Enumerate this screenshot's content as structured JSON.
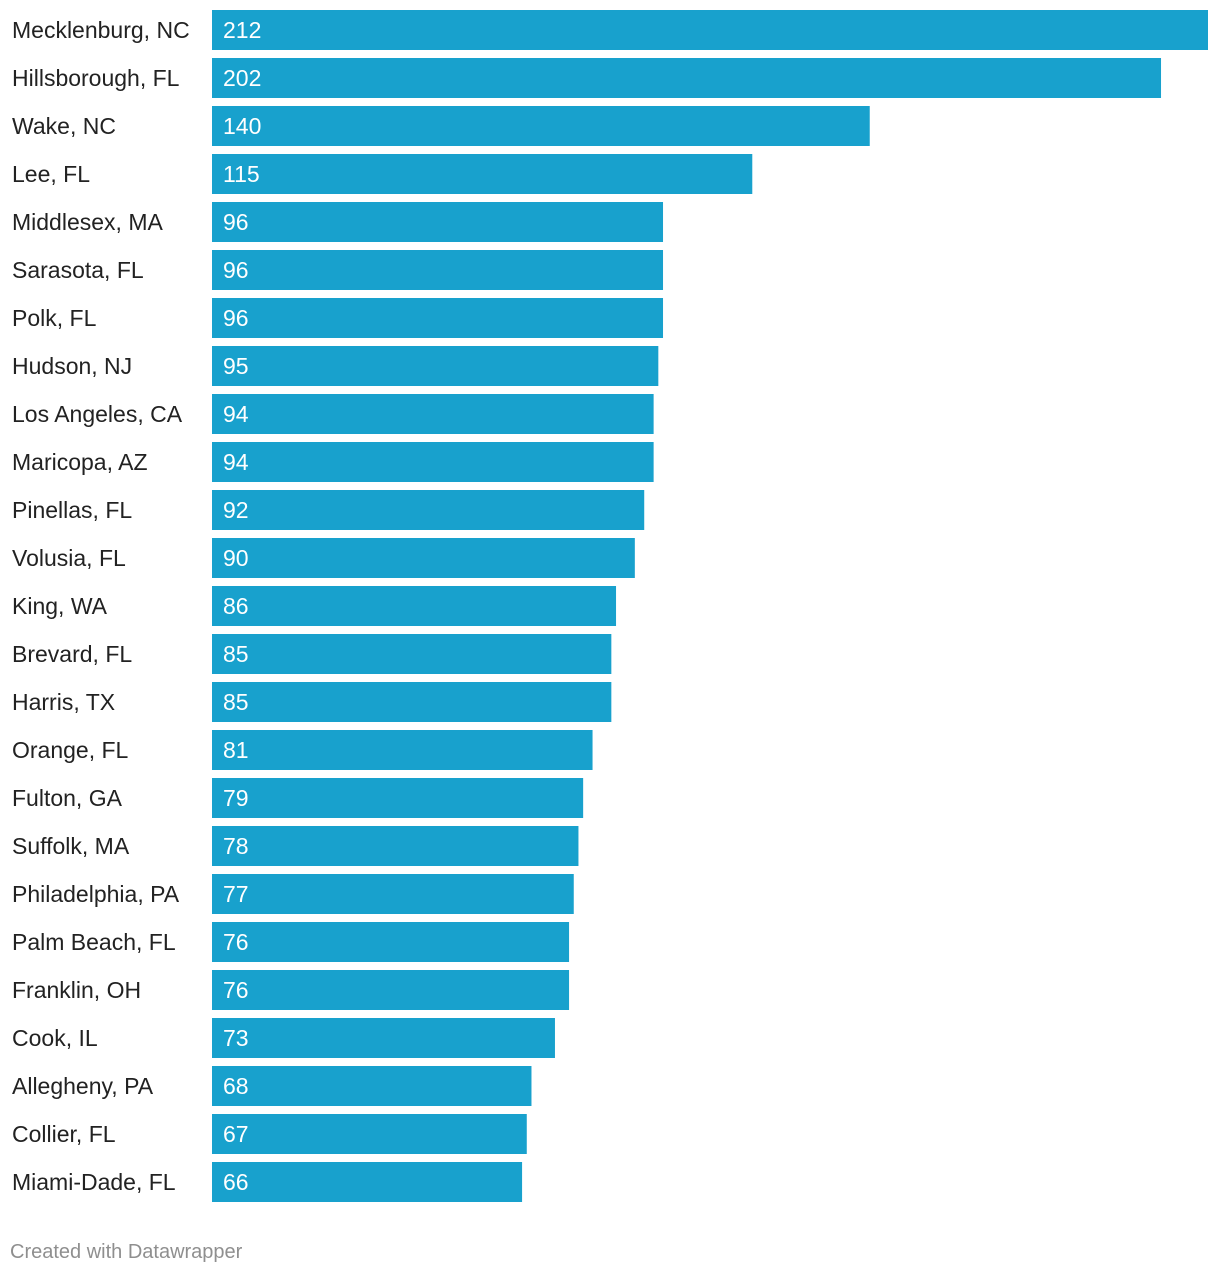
{
  "chart_data": {
    "type": "bar",
    "orientation": "horizontal",
    "title": "",
    "xlabel": "",
    "ylabel": "",
    "xlim": [
      0,
      212
    ],
    "grid": false,
    "bar_color": "#18a1cd",
    "categories": [
      "Mecklenburg, NC",
      "Hillsborough, FL",
      "Wake, NC",
      "Lee, FL",
      "Middlesex, MA",
      "Sarasota, FL",
      "Polk, FL",
      "Hudson, NJ",
      "Los Angeles, CA",
      "Maricopa, AZ",
      "Pinellas, FL",
      "Volusia, FL",
      "King, WA",
      "Brevard, FL",
      "Harris, TX",
      "Orange, FL",
      "Fulton, GA",
      "Suffolk, MA",
      "Philadelphia, PA",
      "Palm Beach, FL",
      "Franklin, OH",
      "Cook, IL",
      "Allegheny, PA",
      "Collier, FL",
      "Miami-Dade, FL"
    ],
    "values": [
      212,
      202,
      140,
      115,
      96,
      96,
      96,
      95,
      94,
      94,
      92,
      90,
      86,
      85,
      85,
      81,
      79,
      78,
      77,
      76,
      76,
      73,
      68,
      67,
      66
    ]
  },
  "footer": {
    "credit": "Created with Datawrapper"
  }
}
